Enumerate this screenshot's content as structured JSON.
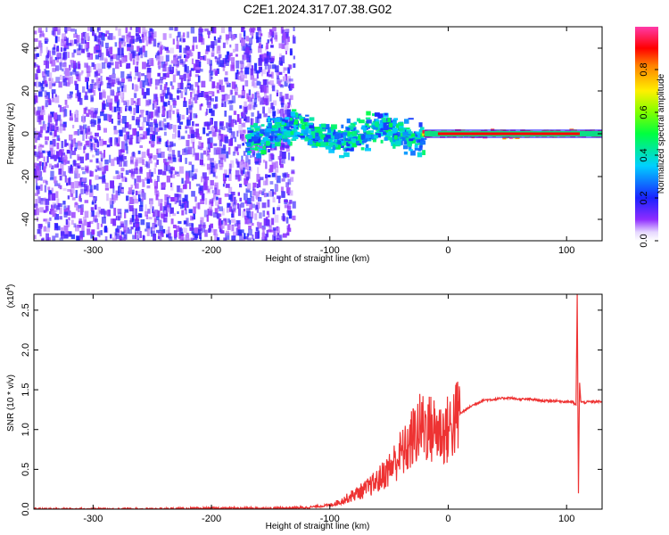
{
  "title": "C2E1.2024.317.07.38.G02",
  "colors": {
    "series_line": "#ee3333",
    "spectrogram_base": "#7a22ee",
    "axis": "#000000"
  },
  "chart_data": [
    {
      "type": "heatmap",
      "xlabel": "Height of straight line (km)",
      "ylabel": "Frequency (Hz)",
      "xlim": [
        -350,
        130
      ],
      "ylim": [
        -50,
        50
      ],
      "x_ticks": [
        -300,
        -200,
        -100,
        0,
        100
      ],
      "y_ticks": [
        -40,
        -20,
        0,
        20,
        40
      ],
      "x_tick_labels": [
        "-300",
        "-200",
        "-100",
        "0",
        "100"
      ],
      "y_tick_labels": [
        "-40",
        "-20",
        "0",
        "20",
        "40"
      ],
      "colorbar": {
        "label": "Normalized spectral amplitude",
        "range": [
          0,
          1
        ],
        "ticks": [
          0.0,
          0.2,
          0.4,
          0.6,
          0.8
        ],
        "tick_labels": [
          "0.0",
          "0.2",
          "0.4",
          "0.6",
          "0.8"
        ],
        "colormap": "rainbow (white to purple to blue to cyan to green to yellow to red to magenta)"
      },
      "regions": [
        {
          "x_range": [
            -350,
            -130
          ],
          "freq_range": [
            -50,
            50
          ],
          "amplitude": [
            0.05,
            0.2
          ],
          "description": "broadband noise"
        },
        {
          "x_range": [
            -170,
            -20
          ],
          "freq_range": [
            -10,
            10
          ],
          "amplitude": [
            0.2,
            0.5
          ]
        },
        {
          "x_range": [
            -20,
            130
          ],
          "freq_range": [
            -2,
            2
          ],
          "amplitude": [
            0.6,
            1.0
          ]
        }
      ]
    },
    {
      "type": "line",
      "xlabel": "Height of straight line (km)",
      "ylabel": "SNR (10 * v/v)",
      "y_multiplier_label": "(x10",
      "y_multiplier_exp": "4",
      "y_multiplier_close": ")",
      "xlim": [
        -350,
        130
      ],
      "ylim": [
        0,
        2.7
      ],
      "x_ticks": [
        -300,
        -200,
        -100,
        0,
        100
      ],
      "y_ticks": [
        0,
        0.5,
        1.0,
        1.5,
        2.0,
        2.5
      ],
      "x_tick_labels": [
        "-300",
        "-200",
        "-100",
        "0",
        "100"
      ],
      "y_tick_labels": [
        "0.0",
        "0.5",
        "1.0",
        "1.5",
        "2.0",
        "2.5"
      ],
      "series": [
        {
          "x": [
            -350,
            -300,
            -250,
            -200,
            -150,
            -120,
            -100,
            -90,
            -80,
            -70,
            -60,
            -50,
            -45,
            -40,
            -35,
            -30,
            -25,
            -20,
            -15,
            -10,
            -5,
            0,
            10,
            20,
            30,
            40,
            50,
            60,
            70,
            80,
            90,
            100,
            105,
            108,
            109,
            110,
            111,
            112,
            115,
            120,
            130
          ],
          "y": [
            0.0,
            0.0,
            0.0,
            0.01,
            0.01,
            0.02,
            0.05,
            0.1,
            0.18,
            0.25,
            0.35,
            0.5,
            0.6,
            0.7,
            0.75,
            0.9,
            1.0,
            1.05,
            1.0,
            1.0,
            0.95,
            1.0,
            1.2,
            1.3,
            1.37,
            1.38,
            1.4,
            1.38,
            1.38,
            1.36,
            1.36,
            1.35,
            1.35,
            1.3,
            2.7,
            0.2,
            1.6,
            1.35,
            1.34,
            1.35,
            1.35
          ]
        }
      ]
    }
  ]
}
